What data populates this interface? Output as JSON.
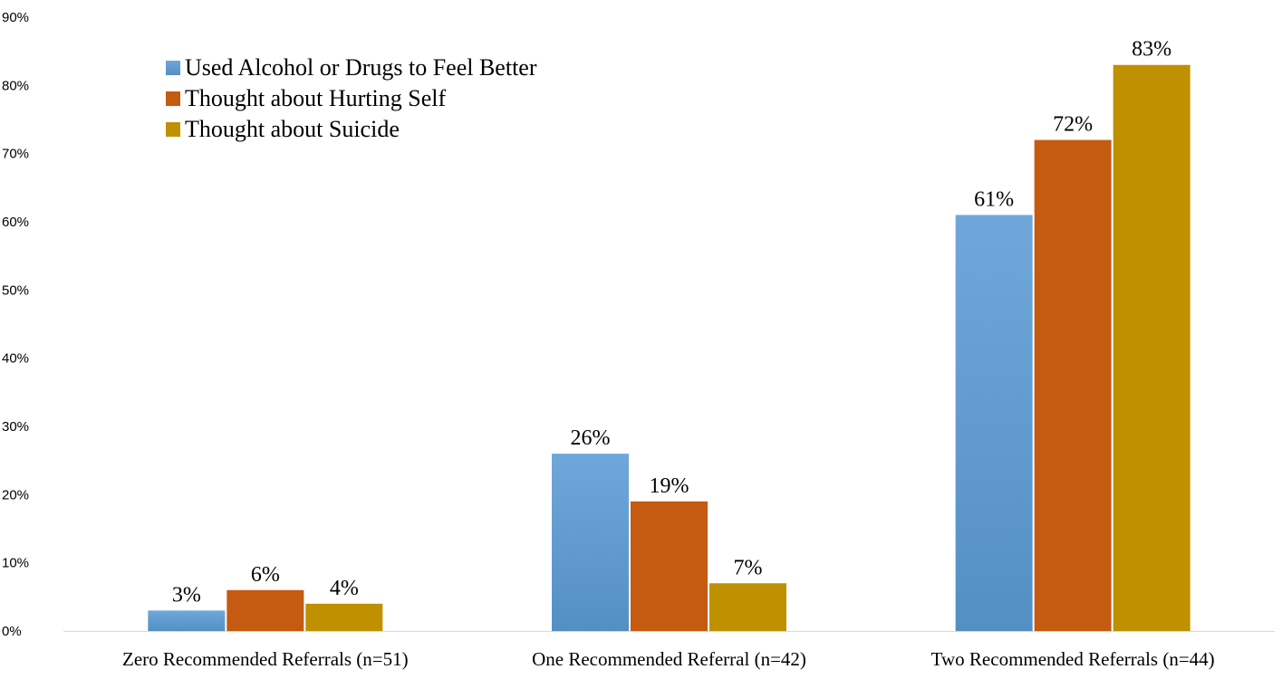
{
  "chart_data": {
    "type": "bar",
    "categories": [
      "Zero Recommended Referrals (n=51)",
      "One Recommended Referral (n=42)",
      "Two Recommended Referrals (n=44)"
    ],
    "series": [
      {
        "name": "Used Alcohol or Drugs to Feel Better",
        "values": [
          3,
          26,
          61
        ],
        "labels": [
          "3%",
          "26%",
          "61%"
        ],
        "color": "#5b9bd5"
      },
      {
        "name": "Thought about Hurting Self",
        "values": [
          6,
          19,
          72
        ],
        "labels": [
          "6%",
          "19%",
          "72%"
        ],
        "color": "#c55a11"
      },
      {
        "name": "Thought about Suicide",
        "values": [
          4,
          7,
          83
        ],
        "labels": [
          "4%",
          "7%",
          "83%"
        ],
        "color": "#bf9000"
      }
    ],
    "title": "",
    "xlabel": "",
    "ylabel": "",
    "ylim": [
      0,
      90
    ],
    "yticks": [
      "0%",
      "10%",
      "20%",
      "30%",
      "40%",
      "50%",
      "60%",
      "70%",
      "80%",
      "90%"
    ],
    "grid": false,
    "legend_position": "top-left"
  }
}
